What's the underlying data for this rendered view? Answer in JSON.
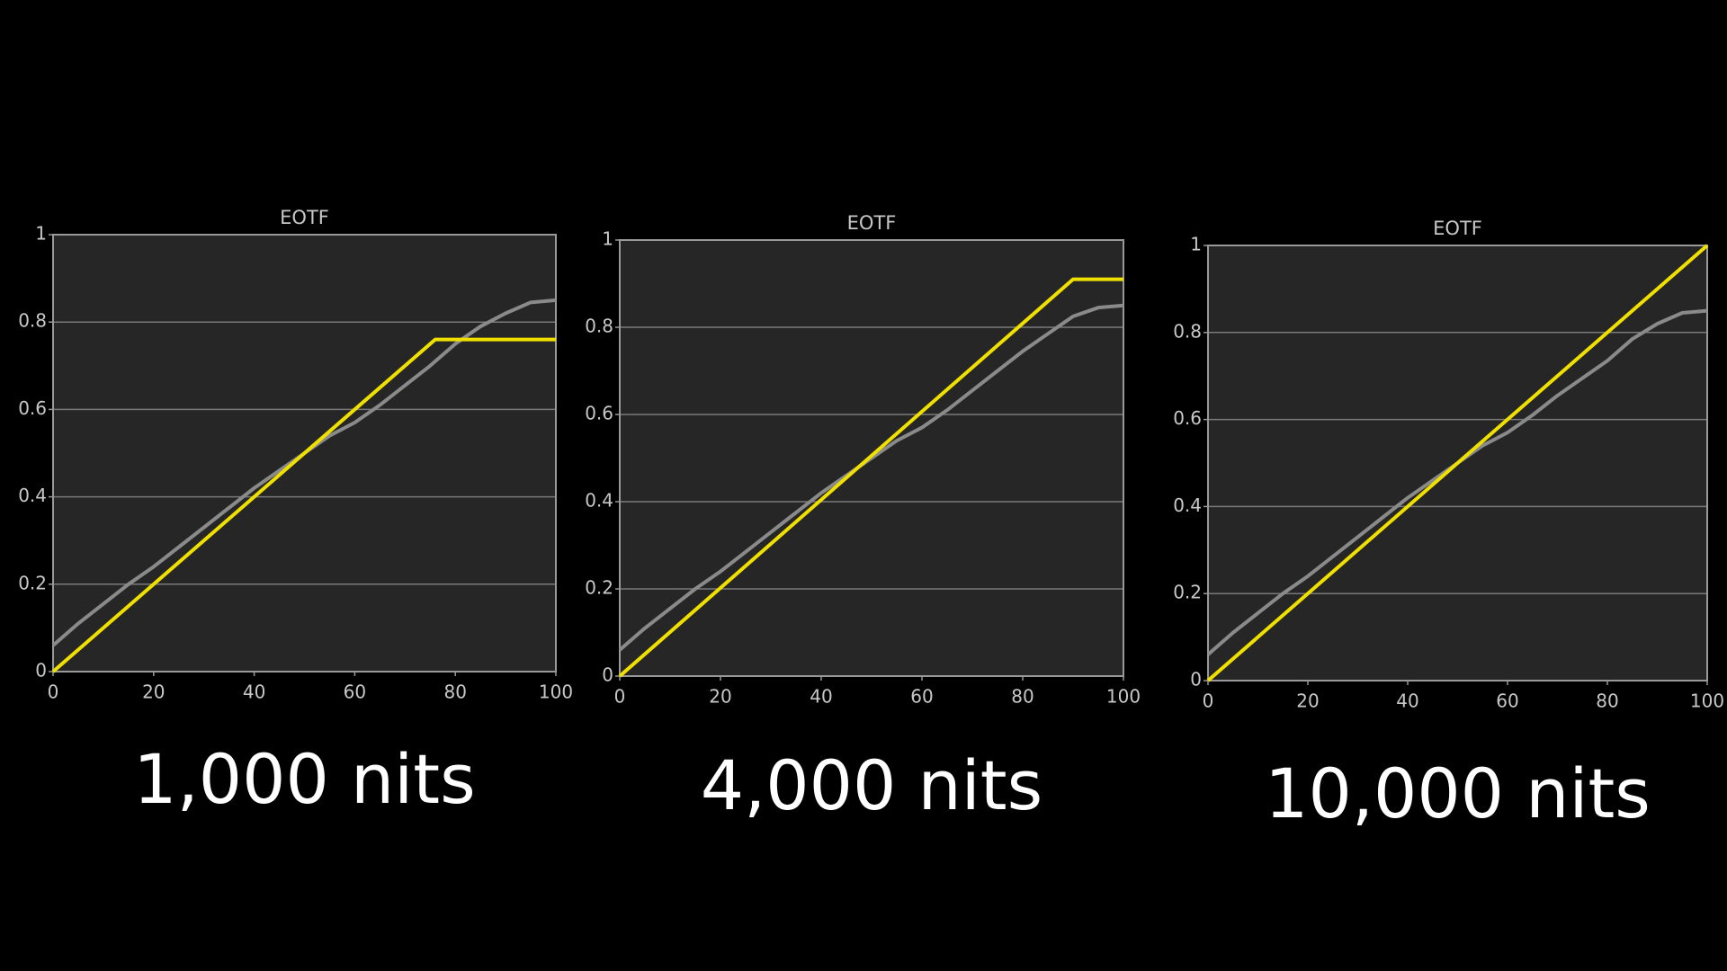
{
  "chart_data": [
    {
      "type": "line",
      "title": "EOTF",
      "caption": "1,000 nits",
      "xlim": [
        0,
        100
      ],
      "xticks": [
        0,
        20,
        40,
        60,
        80,
        100
      ],
      "ylim": [
        0,
        1
      ],
      "yticks": [
        0,
        0.2,
        0.4,
        0.6,
        0.8,
        1
      ],
      "grid": true,
      "series": [
        {
          "color": "#8a8a8a",
          "x": [
            0,
            5,
            10,
            15,
            20,
            25,
            30,
            35,
            40,
            45,
            50,
            55,
            60,
            65,
            70,
            75,
            80,
            85,
            90,
            95,
            100
          ],
          "values": [
            0.06,
            0.11,
            0.155,
            0.2,
            0.24,
            0.285,
            0.33,
            0.375,
            0.42,
            0.46,
            0.5,
            0.54,
            0.57,
            0.61,
            0.655,
            0.7,
            0.75,
            0.79,
            0.82,
            0.845,
            0.85
          ]
        },
        {
          "color": "#f0e000",
          "x": [
            0,
            76,
            100
          ],
          "values": [
            0,
            0.76,
            0.76
          ]
        }
      ]
    },
    {
      "type": "line",
      "title": "EOTF",
      "caption": "4,000 nits",
      "xlim": [
        0,
        100
      ],
      "xticks": [
        0,
        20,
        40,
        60,
        80,
        100
      ],
      "ylim": [
        0,
        1
      ],
      "yticks": [
        0,
        0.2,
        0.4,
        0.6,
        0.8,
        1
      ],
      "grid": true,
      "series": [
        {
          "color": "#8a8a8a",
          "x": [
            0,
            5,
            10,
            15,
            20,
            25,
            30,
            35,
            40,
            45,
            50,
            55,
            60,
            65,
            70,
            75,
            80,
            85,
            90,
            95,
            100
          ],
          "values": [
            0.06,
            0.11,
            0.155,
            0.2,
            0.24,
            0.285,
            0.33,
            0.375,
            0.42,
            0.46,
            0.5,
            0.54,
            0.57,
            0.61,
            0.655,
            0.7,
            0.745,
            0.785,
            0.825,
            0.845,
            0.85
          ]
        },
        {
          "color": "#f0e000",
          "x": [
            0,
            90,
            100
          ],
          "values": [
            0,
            0.91,
            0.91
          ]
        }
      ]
    },
    {
      "type": "line",
      "title": "EOTF",
      "caption": "10,000 nits",
      "xlim": [
        0,
        100
      ],
      "xticks": [
        0,
        20,
        40,
        60,
        80,
        100
      ],
      "ylim": [
        0,
        1
      ],
      "yticks": [
        0,
        0.2,
        0.4,
        0.6,
        0.8,
        1
      ],
      "grid": true,
      "series": [
        {
          "color": "#8a8a8a",
          "x": [
            0,
            5,
            10,
            15,
            20,
            25,
            30,
            35,
            40,
            45,
            50,
            55,
            60,
            65,
            70,
            75,
            80,
            85,
            90,
            95,
            100
          ],
          "values": [
            0.06,
            0.11,
            0.155,
            0.2,
            0.24,
            0.285,
            0.33,
            0.375,
            0.42,
            0.46,
            0.5,
            0.54,
            0.57,
            0.61,
            0.655,
            0.695,
            0.735,
            0.785,
            0.82,
            0.845,
            0.85
          ]
        },
        {
          "color": "#f0e000",
          "x": [
            0,
            100
          ],
          "values": [
            0,
            1
          ]
        }
      ]
    }
  ]
}
